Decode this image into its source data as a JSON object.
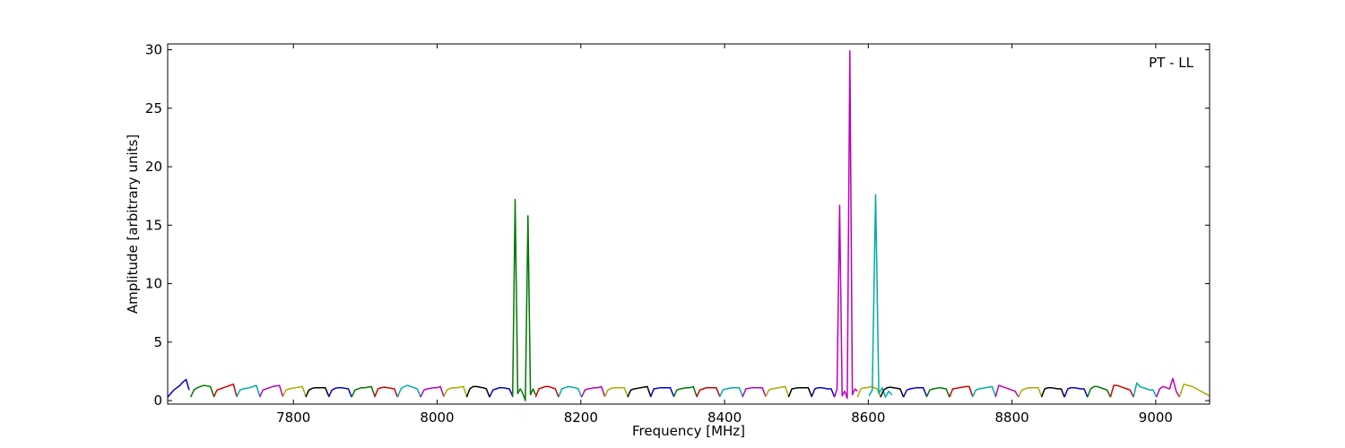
{
  "chart_data": {
    "type": "line",
    "title": "",
    "annotation": "PT - LL",
    "xlabel": "Frequency [MHz]",
    "ylabel": "Amplitude [arbitrary units]",
    "xlim": [
      7625,
      9075
    ],
    "ylim": [
      -0.3,
      30.5
    ],
    "xticks": [
      7800,
      8000,
      8200,
      8400,
      8600,
      8800,
      9000
    ],
    "yticks": [
      0,
      5,
      10,
      15,
      20,
      25,
      30
    ],
    "grid": false,
    "legend": "none",
    "channel_width_mhz": 32,
    "channel_start_mhz": 7625,
    "colors": [
      "#0000cc",
      "#007700",
      "#cc0000",
      "#00aaaa",
      "#bb00bb",
      "#aaaa00",
      "#000000"
    ],
    "series": [
      {
        "x_start": 7625,
        "x_end": 7655,
        "color": "#0000cc",
        "values": [
          0.3,
          0.6,
          0.9,
          1.1,
          1.3,
          1.6,
          1.8,
          0.9
        ]
      },
      {
        "x_start": 7657,
        "x_end": 7689,
        "color": "#007700",
        "values": [
          0.3,
          0.9,
          1.1,
          1.2,
          1.3,
          1.25,
          1.2,
          0.4
        ]
      },
      {
        "x_start": 7689,
        "x_end": 7721,
        "color": "#cc0000",
        "values": [
          0.3,
          0.9,
          1.0,
          1.1,
          1.2,
          1.3,
          1.4,
          0.4
        ]
      },
      {
        "x_start": 7721,
        "x_end": 7753,
        "color": "#00aaaa",
        "values": [
          0.3,
          0.9,
          1.0,
          1.05,
          1.1,
          1.2,
          1.3,
          0.4
        ]
      },
      {
        "x_start": 7753,
        "x_end": 7785,
        "color": "#bb00bb",
        "values": [
          0.3,
          0.9,
          1.0,
          1.1,
          1.2,
          1.25,
          1.3,
          0.4
        ]
      },
      {
        "x_start": 7785,
        "x_end": 7817,
        "color": "#aaaa00",
        "values": [
          0.3,
          0.9,
          1.0,
          1.05,
          1.1,
          1.15,
          1.2,
          0.4
        ]
      },
      {
        "x_start": 7817,
        "x_end": 7849,
        "color": "#000000",
        "values": [
          0.3,
          0.9,
          1.05,
          1.1,
          1.1,
          1.1,
          1.1,
          0.4
        ]
      },
      {
        "x_start": 7849,
        "x_end": 7881,
        "color": "#0000cc",
        "values": [
          0.3,
          0.9,
          1.05,
          1.1,
          1.1,
          1.05,
          1.0,
          0.3
        ]
      },
      {
        "x_start": 7881,
        "x_end": 7913,
        "color": "#007700",
        "values": [
          0.3,
          0.9,
          1.0,
          1.1,
          1.1,
          1.15,
          1.2,
          0.4
        ]
      },
      {
        "x_start": 7913,
        "x_end": 7945,
        "color": "#cc0000",
        "values": [
          0.3,
          1.0,
          1.1,
          1.15,
          1.1,
          1.05,
          1.0,
          0.3
        ]
      },
      {
        "x_start": 7945,
        "x_end": 7977,
        "color": "#00aaaa",
        "values": [
          0.3,
          1.0,
          1.2,
          1.3,
          1.2,
          1.1,
          1.0,
          0.3
        ]
      },
      {
        "x_start": 7977,
        "x_end": 8009,
        "color": "#bb00bb",
        "values": [
          0.3,
          0.9,
          1.0,
          1.05,
          1.1,
          1.1,
          1.2,
          0.4
        ]
      },
      {
        "x_start": 8009,
        "x_end": 8041,
        "color": "#aaaa00",
        "values": [
          0.3,
          0.9,
          1.05,
          1.1,
          1.1,
          1.15,
          1.2,
          0.4
        ]
      },
      {
        "x_start": 8041,
        "x_end": 8073,
        "color": "#000000",
        "values": [
          0.3,
          1.0,
          1.2,
          1.2,
          1.15,
          1.1,
          1.0,
          0.3
        ]
      },
      {
        "x_start": 8073,
        "x_end": 8105,
        "color": "#0000cc",
        "values": [
          0.3,
          0.9,
          1.0,
          1.1,
          1.1,
          1.05,
          1.0,
          0.4
        ]
      },
      {
        "x_start": 8105,
        "x_end": 8137,
        "color": "#007700",
        "values": [
          0.3,
          17.2,
          0.6,
          1.0,
          0.6,
          0.0,
          15.8,
          0.5,
          1.0,
          0.5
        ]
      },
      {
        "x_start": 8137,
        "x_end": 8169,
        "color": "#cc0000",
        "values": [
          0.3,
          1.0,
          1.1,
          1.2,
          1.2,
          1.1,
          1.0,
          0.3
        ]
      },
      {
        "x_start": 8169,
        "x_end": 8201,
        "color": "#00aaaa",
        "values": [
          0.3,
          1.0,
          1.1,
          1.2,
          1.15,
          1.1,
          1.0,
          0.3
        ]
      },
      {
        "x_start": 8201,
        "x_end": 8233,
        "color": "#bb00bb",
        "values": [
          0.3,
          0.9,
          1.0,
          1.05,
          1.1,
          1.1,
          1.2,
          0.4
        ]
      },
      {
        "x_start": 8233,
        "x_end": 8265,
        "color": "#aaaa00",
        "values": [
          0.3,
          0.9,
          1.05,
          1.1,
          1.1,
          1.1,
          1.1,
          0.4
        ]
      },
      {
        "x_start": 8265,
        "x_end": 8297,
        "color": "#000000",
        "values": [
          0.3,
          0.9,
          1.0,
          1.05,
          1.1,
          1.15,
          1.2,
          0.4
        ]
      },
      {
        "x_start": 8297,
        "x_end": 8329,
        "color": "#0000cc",
        "values": [
          0.3,
          1.0,
          1.05,
          1.1,
          1.1,
          1.1,
          1.1,
          0.4
        ]
      },
      {
        "x_start": 8329,
        "x_end": 8361,
        "color": "#007700",
        "values": [
          0.3,
          0.9,
          1.0,
          1.05,
          1.1,
          1.1,
          1.2,
          0.4
        ]
      },
      {
        "x_start": 8361,
        "x_end": 8393,
        "color": "#cc0000",
        "values": [
          0.3,
          0.9,
          1.0,
          1.1,
          1.1,
          1.1,
          1.1,
          0.4
        ]
      },
      {
        "x_start": 8393,
        "x_end": 8425,
        "color": "#00aaaa",
        "values": [
          0.3,
          0.9,
          1.0,
          1.05,
          1.1,
          1.1,
          1.1,
          0.4
        ]
      },
      {
        "x_start": 8425,
        "x_end": 8457,
        "color": "#bb00bb",
        "values": [
          0.3,
          1.0,
          1.05,
          1.1,
          1.1,
          1.1,
          1.1,
          0.4
        ]
      },
      {
        "x_start": 8457,
        "x_end": 8489,
        "color": "#aaaa00",
        "values": [
          0.3,
          0.9,
          1.0,
          1.05,
          1.1,
          1.15,
          1.2,
          0.4
        ]
      },
      {
        "x_start": 8489,
        "x_end": 8521,
        "color": "#000000",
        "values": [
          0.3,
          1.0,
          1.05,
          1.1,
          1.1,
          1.1,
          1.1,
          0.4
        ]
      },
      {
        "x_start": 8521,
        "x_end": 8553,
        "color": "#0000cc",
        "values": [
          0.3,
          1.0,
          1.1,
          1.1,
          1.05,
          1.0,
          1.0,
          0.3
        ]
      },
      {
        "x_start": 8553,
        "x_end": 8585,
        "color": "#bb00bb",
        "values": [
          0.3,
          1.0,
          16.7,
          0.4,
          0.8,
          0.2,
          29.9,
          0.5,
          1.0,
          0.8
        ]
      },
      {
        "x_start": 8585,
        "x_end": 8617,
        "color": "#aaaa00",
        "values": [
          0.3,
          1.0,
          1.1,
          1.1,
          1.2,
          1.1,
          1.0,
          0.3
        ]
      },
      {
        "x_start": 8601,
        "x_end": 8633,
        "color": "#00aaaa",
        "values": [
          0.4,
          0.9,
          17.6,
          0.6,
          1.1,
          0.3,
          0.8,
          0.5
        ]
      },
      {
        "x_start": 8617,
        "x_end": 8649,
        "color": "#000000",
        "values": [
          0.3,
          0.9,
          1.1,
          1.15,
          1.1,
          1.05,
          1.0,
          0.3
        ]
      },
      {
        "x_start": 8649,
        "x_end": 8681,
        "color": "#0000cc",
        "values": [
          0.3,
          0.9,
          1.0,
          1.05,
          1.1,
          1.1,
          1.1,
          0.4
        ]
      },
      {
        "x_start": 8681,
        "x_end": 8713,
        "color": "#007700",
        "values": [
          0.3,
          0.9,
          1.0,
          1.05,
          1.1,
          1.05,
          1.0,
          0.3
        ]
      },
      {
        "x_start": 8713,
        "x_end": 8745,
        "color": "#cc0000",
        "values": [
          0.3,
          1.0,
          1.05,
          1.1,
          1.15,
          1.2,
          1.2,
          0.4
        ]
      },
      {
        "x_start": 8745,
        "x_end": 8777,
        "color": "#00aaaa",
        "values": [
          0.3,
          0.9,
          1.0,
          1.05,
          1.1,
          1.15,
          1.2,
          0.4
        ]
      },
      {
        "x_start": 8777,
        "x_end": 8809,
        "color": "#bb00bb",
        "values": [
          0.3,
          1.3,
          1.2,
          1.1,
          1.0,
          0.9,
          0.8,
          0.3
        ]
      },
      {
        "x_start": 8809,
        "x_end": 8841,
        "color": "#aaaa00",
        "values": [
          0.3,
          0.9,
          1.0,
          1.1,
          1.1,
          1.1,
          1.1,
          0.4
        ]
      },
      {
        "x_start": 8841,
        "x_end": 8873,
        "color": "#000000",
        "values": [
          0.3,
          1.0,
          1.1,
          1.1,
          1.05,
          1.0,
          1.0,
          0.3
        ]
      },
      {
        "x_start": 8873,
        "x_end": 8905,
        "color": "#0000cc",
        "values": [
          0.3,
          1.0,
          1.1,
          1.1,
          1.05,
          1.0,
          1.0,
          0.3
        ]
      },
      {
        "x_start": 8905,
        "x_end": 8937,
        "color": "#007700",
        "values": [
          0.3,
          1.0,
          1.2,
          1.2,
          1.1,
          1.0,
          0.9,
          0.3
        ]
      },
      {
        "x_start": 8937,
        "x_end": 8969,
        "color": "#cc0000",
        "values": [
          0.3,
          1.3,
          1.3,
          1.2,
          1.1,
          1.0,
          0.9,
          0.3
        ]
      },
      {
        "x_start": 8969,
        "x_end": 9001,
        "color": "#00aaaa",
        "values": [
          0.3,
          1.5,
          1.2,
          1.1,
          1.0,
          0.9,
          0.9,
          0.3
        ]
      },
      {
        "x_start": 9001,
        "x_end": 9033,
        "color": "#bb00bb",
        "values": [
          0.3,
          1.0,
          1.2,
          1.1,
          1.0,
          1.9,
          0.8,
          0.3
        ]
      },
      {
        "x_start": 9033,
        "x_end": 9075,
        "color": "#aaaa00",
        "values": [
          0.3,
          1.4,
          1.3,
          1.2,
          1.0,
          0.8,
          0.6,
          0.4
        ]
      }
    ]
  }
}
